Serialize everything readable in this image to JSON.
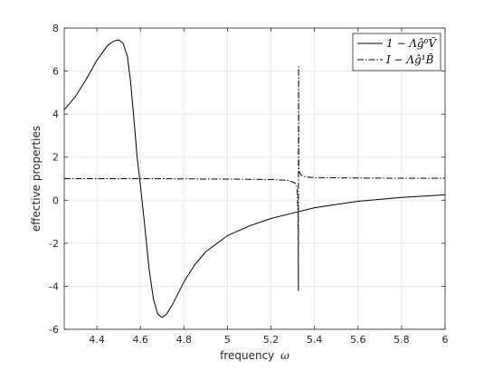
{
  "chart_data": {
    "type": "line",
    "xlabel_text": "frequency",
    "xlabel_symbol": "ω",
    "ylabel": "effective properties",
    "xlim": [
      4.25,
      6
    ],
    "ylim": [
      -6,
      8
    ],
    "xticks": [
      4.4,
      4.6,
      4.8,
      5,
      5.2,
      5.4,
      5.6,
      5.8,
      6
    ],
    "yticks": [
      -6,
      -4,
      -2,
      0,
      2,
      4,
      6,
      8
    ],
    "xtick_labels": [
      "4.4",
      "4.6",
      "4.8",
      "5",
      "5.2",
      "5.4",
      "5.6",
      "5.8",
      "6"
    ],
    "ytick_labels": [
      "-6",
      "-4",
      "-2",
      "0",
      "2",
      "4",
      "6",
      "8"
    ],
    "grid": true,
    "legend_position": "top-right",
    "series": [
      {
        "name": "1 − Λĝ⁰Ṽ",
        "style": "solid",
        "color": "#000000",
        "x": [
          4.25,
          4.3,
          4.35,
          4.4,
          4.45,
          4.48,
          4.5,
          4.52,
          4.54,
          4.555,
          4.57,
          4.585,
          4.6,
          4.62,
          4.64,
          4.66,
          4.68,
          4.7,
          4.72,
          4.75,
          4.8,
          4.85,
          4.9,
          5.0,
          5.1,
          5.2,
          5.3,
          5.4,
          5.6,
          5.8,
          6.0
        ],
        "y": [
          4.2,
          4.8,
          5.6,
          6.5,
          7.2,
          7.4,
          7.45,
          7.3,
          6.7,
          5.5,
          3.8,
          2.0,
          0.7,
          -1.2,
          -3.2,
          -4.6,
          -5.3,
          -5.45,
          -5.3,
          -4.8,
          -3.8,
          -3.0,
          -2.4,
          -1.65,
          -1.2,
          -0.85,
          -0.6,
          -0.35,
          -0.05,
          0.13,
          0.25
        ]
      },
      {
        "name": "I − Λĝ¹B̃",
        "style": "dashdot",
        "color": "#000000",
        "x": [
          4.25,
          4.6,
          5.0,
          5.2,
          5.28,
          5.31,
          5.32,
          5.325,
          5.326,
          5.327,
          5.3275,
          5.328,
          5.33,
          5.34,
          5.36,
          5.4,
          5.6,
          5.8,
          6.0
        ],
        "y": [
          1.0,
          1.0,
          0.98,
          0.96,
          0.92,
          0.8,
          0.6,
          -0.8,
          -4.2,
          6.2,
          3.5,
          1.6,
          1.3,
          1.15,
          1.08,
          1.05,
          1.03,
          1.02,
          1.02
        ]
      }
    ]
  }
}
